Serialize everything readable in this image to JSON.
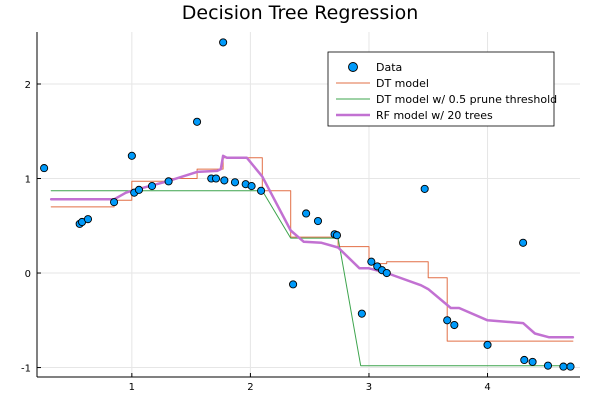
{
  "chart_data": {
    "type": "scatter",
    "title": "Decision Tree Regression",
    "xlabel": "",
    "ylabel": "",
    "xlim": [
      0.2,
      4.78
    ],
    "ylim": [
      -1.1,
      2.55
    ],
    "x_ticks": [
      1,
      2,
      3,
      4
    ],
    "y_ticks": [
      -1,
      0,
      1,
      2
    ],
    "x_tick_labels": [
      "1",
      "2",
      "3",
      "4"
    ],
    "y_tick_labels": [
      "-1",
      "0",
      "1",
      "2"
    ],
    "grid": true,
    "legend_position": "top-right",
    "legend": [
      {
        "label": "Data",
        "color": "#009AFA"
      },
      {
        "label": "DT model",
        "color": "#E26F46"
      },
      {
        "label": "DT model w/ 0.5 prune threshold",
        "color": "#3DA44D"
      },
      {
        "label": "RF model w/ 20 trees",
        "color": "#C271D2"
      }
    ],
    "scatter": {
      "name": "Data",
      "color": "#009AFA",
      "points": [
        [
          0.26,
          1.11
        ],
        [
          0.56,
          0.52
        ],
        [
          0.58,
          0.54
        ],
        [
          0.63,
          0.57
        ],
        [
          0.85,
          0.75
        ],
        [
          1.0,
          1.24
        ],
        [
          1.02,
          0.85
        ],
        [
          1.06,
          0.88
        ],
        [
          1.17,
          0.92
        ],
        [
          1.31,
          0.97
        ],
        [
          1.55,
          1.6
        ],
        [
          1.67,
          1.0
        ],
        [
          1.71,
          1.0
        ],
        [
          1.77,
          2.44
        ],
        [
          1.78,
          0.98
        ],
        [
          1.87,
          0.96
        ],
        [
          1.96,
          0.94
        ],
        [
          2.01,
          0.92
        ],
        [
          2.09,
          0.87
        ],
        [
          2.36,
          -0.12
        ],
        [
          2.47,
          0.63
        ],
        [
          2.57,
          0.55
        ],
        [
          2.71,
          0.41
        ],
        [
          2.73,
          0.4
        ],
        [
          2.94,
          -0.43
        ],
        [
          3.02,
          0.12
        ],
        [
          3.07,
          0.07
        ],
        [
          3.11,
          0.03
        ],
        [
          3.15,
          0.0
        ],
        [
          3.47,
          0.89
        ],
        [
          3.66,
          -0.5
        ],
        [
          3.72,
          -0.55
        ],
        [
          4.0,
          -0.76
        ],
        [
          4.3,
          0.32
        ],
        [
          4.31,
          -0.92
        ],
        [
          4.38,
          -0.94
        ],
        [
          4.51,
          -0.98
        ],
        [
          4.64,
          -0.99
        ],
        [
          4.7,
          -0.99
        ]
      ]
    },
    "series": [
      {
        "name": "DT model",
        "color": "#E26F46",
        "width": 1,
        "x": [
          0.32,
          0.85,
          0.85,
          1.0,
          1.0,
          1.31,
          1.31,
          1.55,
          1.55,
          1.77,
          1.77,
          2.1,
          2.1,
          2.34,
          2.34,
          2.74,
          2.74,
          3.0,
          3.0,
          3.15,
          3.15,
          3.5,
          3.5,
          3.66,
          3.66,
          4.72
        ],
        "y": [
          0.7,
          0.7,
          0.77,
          0.77,
          0.97,
          0.97,
          1.0,
          1.0,
          1.1,
          1.1,
          1.22,
          1.22,
          0.87,
          0.87,
          0.38,
          0.38,
          0.28,
          0.28,
          0.1,
          0.1,
          0.12,
          0.12,
          -0.05,
          -0.05,
          -0.72,
          -0.72
        ]
      },
      {
        "name": "DT model w/ 0.5 prune threshold",
        "color": "#3DA44D",
        "width": 1,
        "x": [
          0.32,
          2.1,
          2.1,
          2.34,
          2.34,
          2.74,
          2.74,
          2.92,
          2.92,
          4.72
        ],
        "y": [
          0.87,
          0.87,
          0.87,
          0.87,
          0.37,
          0.37,
          0.37,
          0.37,
          -0.98,
          -0.98
        ],
        "segments": [
          [
            [
              0.32,
              0.87
            ],
            [
              2.1,
              0.87
            ],
            [
              2.34,
              0.37
            ],
            [
              2.74,
              0.37
            ],
            [
              2.93,
              -0.98
            ],
            [
              4.72,
              -0.98
            ]
          ]
        ]
      },
      {
        "name": "RF model w/ 20 trees",
        "color": "#C271D2",
        "width": 2.5,
        "x": [
          0.32,
          0.85,
          0.95,
          1.0,
          1.3,
          1.55,
          1.72,
          1.75,
          1.77,
          1.8,
          1.97,
          2.1,
          2.34,
          2.45,
          2.6,
          2.74,
          2.92,
          3.0,
          3.15,
          3.44,
          3.5,
          3.69,
          3.76,
          4.0,
          4.3,
          4.4,
          4.52,
          4.72
        ],
        "y": [
          0.78,
          0.78,
          0.85,
          0.87,
          0.97,
          1.07,
          1.08,
          1.1,
          1.24,
          1.22,
          1.22,
          1.02,
          0.45,
          0.33,
          0.32,
          0.27,
          0.05,
          0.05,
          0.0,
          -0.13,
          -0.17,
          -0.37,
          -0.37,
          -0.5,
          -0.53,
          -0.64,
          -0.68,
          -0.68
        ]
      }
    ]
  }
}
